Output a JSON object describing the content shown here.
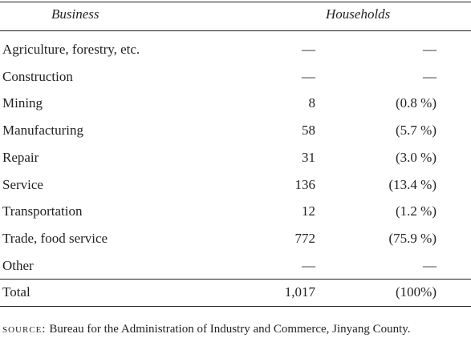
{
  "table": {
    "header": [
      "Business",
      "Households"
    ],
    "rows": [
      [
        "Agriculture, forestry, etc.",
        "—",
        "—"
      ],
      [
        "Construction",
        "—",
        "—"
      ],
      [
        "Mining",
        "8",
        "(0.8 %)"
      ],
      [
        "Manufacturing",
        "58",
        "(5.7 %)"
      ],
      [
        "Repair",
        "31",
        "(3.0 %)"
      ],
      [
        "Service",
        "136",
        "(13.4 %)"
      ],
      [
        "Transportation",
        "12",
        "(1.2 %)"
      ],
      [
        "Trade, food service",
        "772",
        "(75.9 %)"
      ],
      [
        "Other",
        "—",
        "—"
      ]
    ],
    "total": [
      "Total",
      "1,017",
      "(100%)"
    ]
  },
  "source": {
    "label": "source:",
    "text": "Bureau for the Administration of Industry and Commerce, Jinyang County."
  }
}
